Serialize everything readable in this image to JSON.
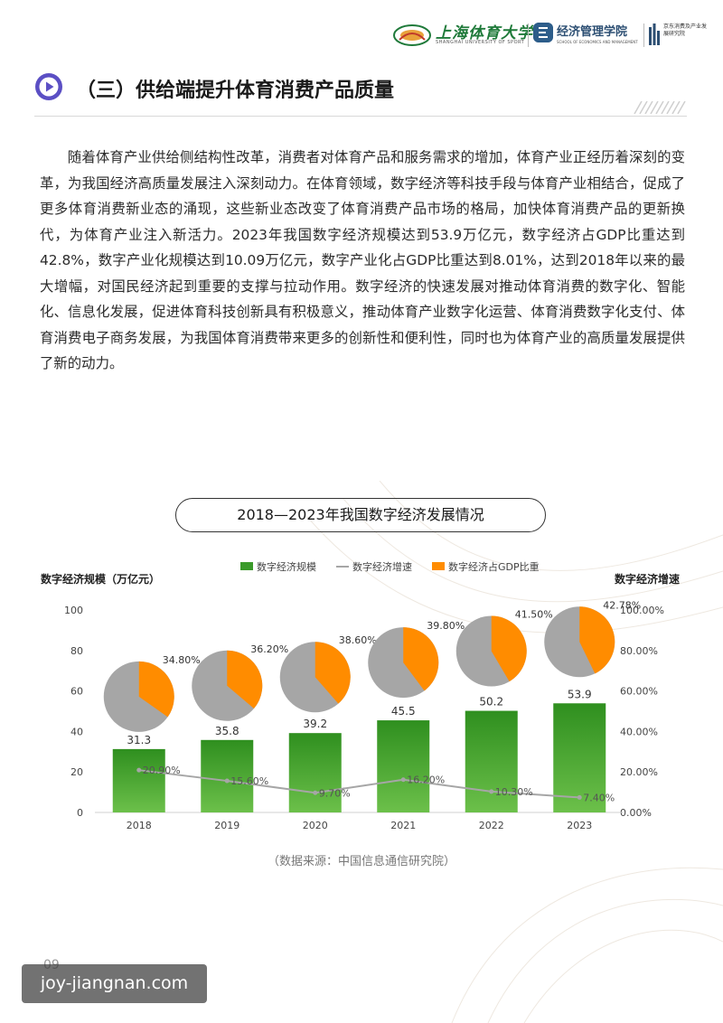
{
  "header": {
    "university_name": "上海体育大学",
    "university_sub": "SHANGHAI UNIVERSITY OF SPORT",
    "school_name": "经济管理学院",
    "school_sub": "SCHOOL OF ECONOMICS AND MANAGEMENT",
    "institute_name": "京东消费及产业发展研究院"
  },
  "section": {
    "title": "（三）供给端提升体育消费产品质量"
  },
  "body_text": "随着体育产业供给侧结构性改革，消费者对体育产品和服务需求的增加，体育产业正经历着深刻的变革，为我国经济高质量发展注入深刻动力。在体育领域，数字经济等科技手段与体育产业相结合，促成了更多体育消费新业态的涌现，这些新业态改变了体育消费产品市场的格局，加快体育消费产品的更新换代，为体育产业注入新活力。2023年我国数字经济规模达到53.9万亿元，数字经济占GDP比重达到42.8%，数字产业化规模达到10.09万亿元，数字产业化占GDP比重达到8.01%，达到2018年以来的最大增幅，对国民经济起到重要的支撑与拉动作用。数字经济的快速发展对推动体育消费的数字化、智能化、信息化发展，促进体育科技创新具有积极意义，推动体育产业数字化运营、体育消费数字化支付、体育消费电子商务发展，为我国体育消费带来更多的创新性和便利性，同时也为体育产业的高质量发展提供了新的动力。",
  "chart_title": "2018—2023年我国数字经济发展情况",
  "chart_data": {
    "type": "bar",
    "title": "2018—2023年我国数字经济发展情况",
    "categories": [
      "2018",
      "2019",
      "2020",
      "2021",
      "2022",
      "2023"
    ],
    "ylabel_left": "数字经济规模（万亿元）",
    "ylabel_right": "数字经济增速",
    "ylim_left": [
      0,
      100
    ],
    "yticks_left": [
      "0",
      "20",
      "40",
      "60",
      "80",
      "100"
    ],
    "ylim_right": [
      0,
      100
    ],
    "yticks_right": [
      "0.00%",
      "20.00%",
      "40.00%",
      "60.00%",
      "80.00%",
      "100.00%"
    ],
    "legend": [
      "数字经济规模",
      "数字经济增速",
      "数字经济占GDP比重"
    ],
    "legend_position": "top",
    "series": [
      {
        "name": "数字经济规模",
        "type": "bar",
        "color": "#3a9a2a",
        "values": [
          31.3,
          35.8,
          39.2,
          45.5,
          50.2,
          53.9
        ],
        "labels": [
          "31.3",
          "35.8",
          "39.2",
          "45.5",
          "50.2",
          "53.9"
        ]
      },
      {
        "name": "数字经济增速",
        "type": "line",
        "color": "#a6a6a6",
        "values": [
          20.9,
          15.6,
          9.7,
          16.2,
          10.3,
          7.4
        ],
        "labels": [
          "20.90%",
          "15.60%",
          "9.70%",
          "16.20%",
          "10.30%",
          "7.40%"
        ]
      },
      {
        "name": "数字经济占GDP比重",
        "type": "pie",
        "colors": [
          "#ff8c00",
          "#a6a6a6"
        ],
        "values": [
          34.8,
          36.2,
          38.6,
          39.8,
          41.5,
          42.78
        ],
        "labels": [
          "34.80%",
          "36.20%",
          "38.60%",
          "39.80%",
          "41.50%",
          "42.78%"
        ]
      }
    ]
  },
  "source": "（数据来源：中国信息通信研究院）",
  "page_number": "09",
  "watermark": "joy-jiangnan.com"
}
